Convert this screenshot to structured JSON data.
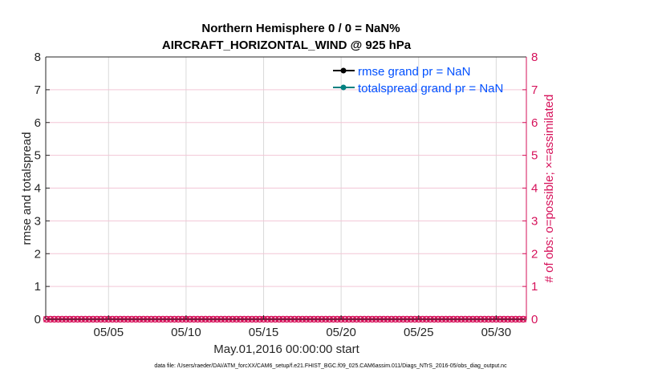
{
  "chart_data": {
    "type": "line",
    "title": [
      "Northern Hemisphere 0 / 0 = NaN%",
      "AIRCRAFT_HORIZONTAL_WIND @ 925 hPa"
    ],
    "xlabel": "May.01,2016 00:00:00 start",
    "ylabel_left": "rmse and totalspread",
    "ylabel_right": "# of obs: o=possible; ×=assimilated",
    "xlim": [
      "2016-05-01 00:00",
      "2016-06-01 00:00"
    ],
    "ylim_left": [
      0,
      8
    ],
    "ylim_right": [
      0,
      8
    ],
    "x_ticks": [
      "05/05",
      "05/10",
      "05/15",
      "05/20",
      "05/25",
      "05/30"
    ],
    "x_tick_dates": [
      "2016-05-05",
      "2016-05-10",
      "2016-05-15",
      "2016-05-20",
      "2016-05-25",
      "2016-05-30"
    ],
    "y_ticks": [
      "0",
      "1",
      "2",
      "3",
      "4",
      "5",
      "6",
      "7",
      "8"
    ],
    "grid": true,
    "legend_position": "top-right",
    "colors": {
      "rmse": "#000000",
      "totalspread": "#008080",
      "obs": "#d6115a",
      "legend_text": "#0050ff",
      "grid_v": "#d9d9d9",
      "grid_h": "#f3c6d6"
    },
    "series": [
      {
        "name": "rmse grand pr = NaN",
        "axis": "left",
        "values": "NaN"
      },
      {
        "name": "totalspread grand pr = NaN",
        "axis": "left",
        "values": "NaN"
      },
      {
        "axis": "right",
        "marker": "o",
        "label": "possible",
        "value_all_times": 0
      },
      {
        "axis": "right",
        "marker": "x",
        "label": "assimilated",
        "value_all_times": 0
      }
    ],
    "obs_times": {
      "start": "2016-05-01 00:00",
      "end": "2016-05-31 18:00",
      "interval_hours": 6
    }
  },
  "footer": {
    "data_file": "data file: /Users/raeder/DAI/ATM_forcXX/CAM6_setup/f.e21.FHIST_BGC.f09_025.CAM6assim.011/Diags_NTrS_2016-05/obs_diag_output.nc"
  }
}
